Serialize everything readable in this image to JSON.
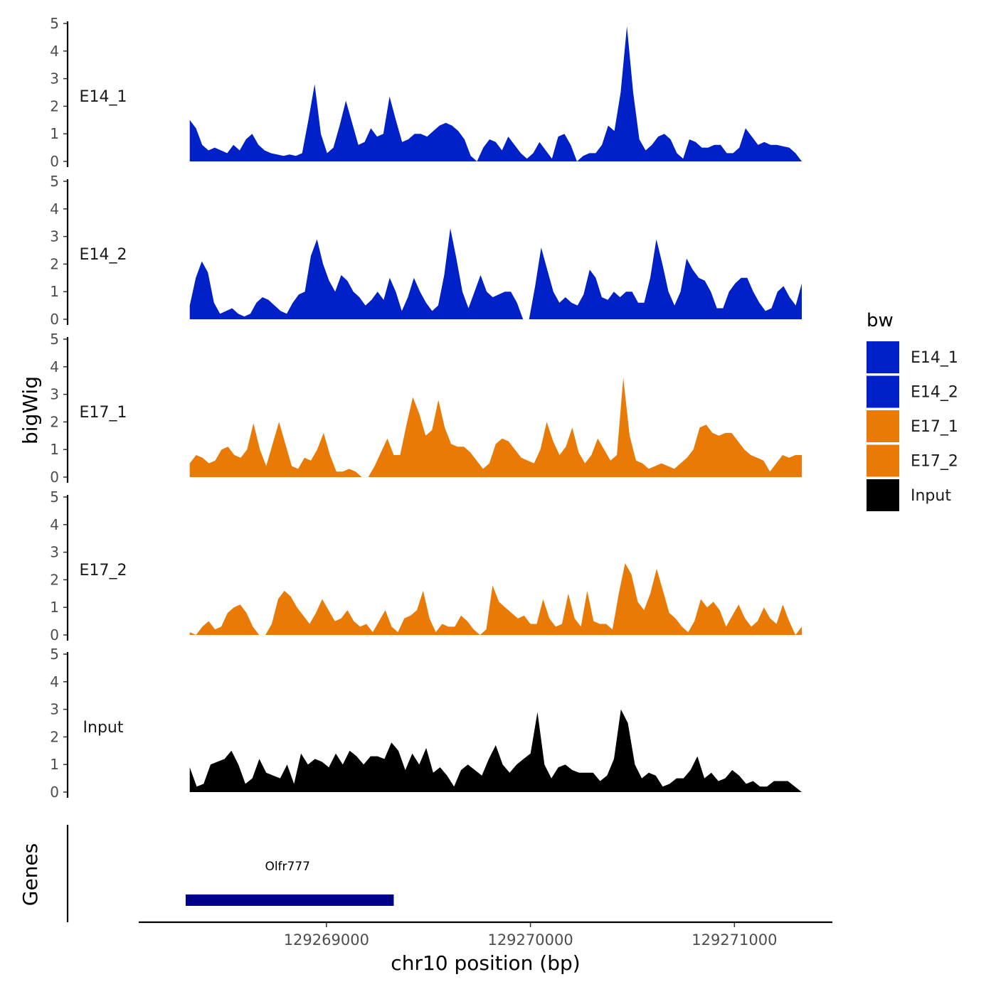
{
  "chart_data": {
    "type": "area",
    "title": "",
    "ylabel": "bigWig",
    "genes_label": "Genes",
    "xlabel": "chr10 position (bp)",
    "xlim": [
      129268330,
      129271330
    ],
    "x_axis_range": [
      129268080,
      129271480
    ],
    "x_ticks": [
      129269000,
      129270000,
      129271000
    ],
    "x_tick_labels": [
      "129269000",
      "129270000",
      "129271000"
    ],
    "ylim": [
      0,
      5
    ],
    "y_ticks": [
      0,
      1,
      2,
      3,
      4,
      5
    ],
    "y_tick_labels": [
      "0",
      "1",
      "2",
      "3",
      "4",
      "5"
    ],
    "grid": false,
    "legend": {
      "title": "bw",
      "position": "right",
      "entries": [
        {
          "label": "E14_1",
          "color": "#0020C8"
        },
        {
          "label": "E14_2",
          "color": "#0020C8"
        },
        {
          "label": "E17_1",
          "color": "#E87A05"
        },
        {
          "label": "E17_2",
          "color": "#E87A05"
        },
        {
          "label": "Input",
          "color": "#000000"
        }
      ]
    },
    "series": [
      {
        "name": "E14_1",
        "color": "#0020C8",
        "values": [
          1.5,
          1.2,
          0.6,
          0.4,
          0.5,
          0.4,
          0.3,
          0.6,
          0.4,
          0.8,
          1.0,
          0.6,
          0.4,
          0.3,
          0.25,
          0.2,
          0.25,
          0.2,
          0.3,
          1.5,
          2.8,
          1.0,
          0.3,
          0.5,
          1.3,
          2.2,
          1.4,
          0.6,
          0.7,
          1.2,
          0.9,
          1.0,
          2.35,
          1.5,
          0.7,
          0.8,
          1.0,
          1.0,
          0.9,
          1.1,
          1.3,
          1.4,
          1.3,
          1.1,
          0.8,
          0.2,
          0.0,
          0.5,
          0.8,
          0.7,
          0.4,
          0.9,
          0.6,
          0.3,
          0.1,
          0.3,
          0.7,
          0.4,
          0.1,
          0.9,
          1.0,
          0.6,
          0.0,
          0.2,
          0.3,
          0.3,
          0.6,
          1.3,
          1.1,
          2.5,
          4.9,
          2.5,
          0.8,
          0.4,
          0.6,
          0.9,
          1.0,
          0.8,
          0.3,
          0.1,
          0.8,
          0.7,
          0.5,
          0.5,
          0.6,
          0.6,
          0.3,
          0.3,
          0.5,
          1.2,
          0.9,
          0.6,
          0.7,
          0.6,
          0.6,
          0.55,
          0.5,
          0.3,
          0.0
        ]
      },
      {
        "name": "E14_2",
        "color": "#0020C8",
        "values": [
          0.5,
          1.5,
          2.1,
          1.7,
          0.6,
          0.2,
          0.3,
          0.4,
          0.2,
          0.1,
          0.2,
          0.6,
          0.8,
          0.7,
          0.5,
          0.3,
          0.2,
          0.6,
          0.9,
          1.0,
          2.3,
          2.9,
          2.0,
          1.4,
          1.0,
          1.6,
          1.4,
          1.0,
          0.8,
          0.5,
          0.7,
          1.0,
          0.7,
          1.5,
          1.0,
          0.3,
          0.8,
          1.5,
          1.0,
          0.6,
          0.3,
          0.5,
          1.6,
          3.3,
          2.2,
          1.0,
          0.4,
          1.0,
          1.6,
          1.0,
          0.8,
          0.9,
          1.0,
          1.0,
          0.6,
          0.0,
          0.0,
          1.2,
          2.6,
          1.8,
          1.0,
          0.6,
          0.8,
          0.6,
          0.5,
          0.9,
          1.8,
          1.5,
          0.8,
          0.7,
          1.0,
          0.8,
          1.0,
          1.0,
          0.6,
          0.6,
          1.5,
          2.9,
          2.0,
          1.0,
          0.5,
          1.0,
          2.2,
          1.8,
          1.5,
          1.4,
          1.0,
          0.4,
          0.4,
          1.0,
          1.3,
          1.5,
          1.5,
          1.0,
          0.6,
          0.3,
          0.4,
          1.0,
          1.2,
          0.8,
          0.5,
          1.3
        ]
      },
      {
        "name": "E17_1",
        "color": "#E87A05",
        "values": [
          0.5,
          0.8,
          0.7,
          0.5,
          0.6,
          1.0,
          1.1,
          0.8,
          0.7,
          1.0,
          1.95,
          1.0,
          0.4,
          1.2,
          2.0,
          1.2,
          0.4,
          0.3,
          0.7,
          0.6,
          1.0,
          1.6,
          0.8,
          0.2,
          0.2,
          0.3,
          0.2,
          0.0,
          0.0,
          0.4,
          0.9,
          1.4,
          0.8,
          0.8,
          1.9,
          2.9,
          2.3,
          1.5,
          1.7,
          2.8,
          1.8,
          1.2,
          1.1,
          1.1,
          0.9,
          0.6,
          0.3,
          0.5,
          1.2,
          1.4,
          1.3,
          1.0,
          0.7,
          0.6,
          0.5,
          1.0,
          2.0,
          1.3,
          0.8,
          1.1,
          1.8,
          0.9,
          0.5,
          0.8,
          1.4,
          1.0,
          0.6,
          0.8,
          3.6,
          1.5,
          0.6,
          0.5,
          0.3,
          0.4,
          0.5,
          0.4,
          0.3,
          0.5,
          0.7,
          1.0,
          1.8,
          1.9,
          1.6,
          1.5,
          1.6,
          1.6,
          1.3,
          1.0,
          0.8,
          0.7,
          0.6,
          0.2,
          0.5,
          0.8,
          0.7,
          0.8,
          0.8
        ]
      },
      {
        "name": "E17_2",
        "color": "#E87A05",
        "values": [
          0.1,
          0.0,
          0.3,
          0.5,
          0.2,
          0.3,
          0.8,
          1.0,
          1.1,
          0.8,
          0.3,
          0.0,
          0.0,
          0.4,
          1.3,
          1.6,
          1.4,
          1.0,
          0.7,
          0.4,
          0.8,
          1.3,
          0.9,
          0.5,
          0.6,
          0.9,
          0.5,
          0.3,
          0.4,
          0.1,
          0.5,
          0.9,
          0.3,
          0.1,
          0.6,
          0.7,
          0.9,
          1.6,
          0.6,
          0.1,
          0.4,
          0.3,
          0.3,
          0.7,
          0.5,
          0.2,
          0.0,
          0.2,
          1.8,
          1.2,
          1.0,
          0.8,
          0.6,
          0.7,
          0.4,
          0.4,
          1.3,
          0.6,
          0.3,
          0.4,
          1.5,
          0.6,
          0.3,
          1.6,
          0.5,
          0.4,
          0.4,
          0.2,
          1.5,
          2.6,
          2.2,
          1.2,
          0.9,
          1.5,
          2.4,
          1.6,
          0.8,
          0.6,
          0.3,
          0.1,
          0.5,
          1.3,
          1.0,
          1.2,
          0.9,
          0.3,
          0.7,
          1.1,
          0.6,
          0.3,
          0.5,
          1.0,
          0.6,
          0.4,
          1.1,
          0.5,
          0.0,
          0.3
        ]
      },
      {
        "name": "Input",
        "color": "#000000",
        "values": [
          0.9,
          0.2,
          0.3,
          1.0,
          1.1,
          1.2,
          1.5,
          1.0,
          0.3,
          0.5,
          1.2,
          0.7,
          0.6,
          0.5,
          1.0,
          0.3,
          1.4,
          1.0,
          1.2,
          1.1,
          0.9,
          1.4,
          1.0,
          1.5,
          1.3,
          1.0,
          1.3,
          1.3,
          1.2,
          1.8,
          1.5,
          0.8,
          1.4,
          1.0,
          1.6,
          0.7,
          0.9,
          0.6,
          0.2,
          0.8,
          1.0,
          0.8,
          0.6,
          1.2,
          1.7,
          1.0,
          0.7,
          1.0,
          1.2,
          1.4,
          2.9,
          1.0,
          0.5,
          0.9,
          1.0,
          0.8,
          0.7,
          0.7,
          0.7,
          0.4,
          0.6,
          1.2,
          3.0,
          2.5,
          1.0,
          0.5,
          0.7,
          0.6,
          0.2,
          0.3,
          0.5,
          0.5,
          0.8,
          1.3,
          0.5,
          0.7,
          0.4,
          0.5,
          0.8,
          0.6,
          0.3,
          0.4,
          0.2,
          0.2,
          0.4,
          0.4,
          0.4,
          0.2,
          0.0
        ]
      }
    ],
    "genes": [
      {
        "name": "Olfr777",
        "start": 129268310,
        "end": 129269330,
        "color": "#00008B"
      }
    ]
  }
}
